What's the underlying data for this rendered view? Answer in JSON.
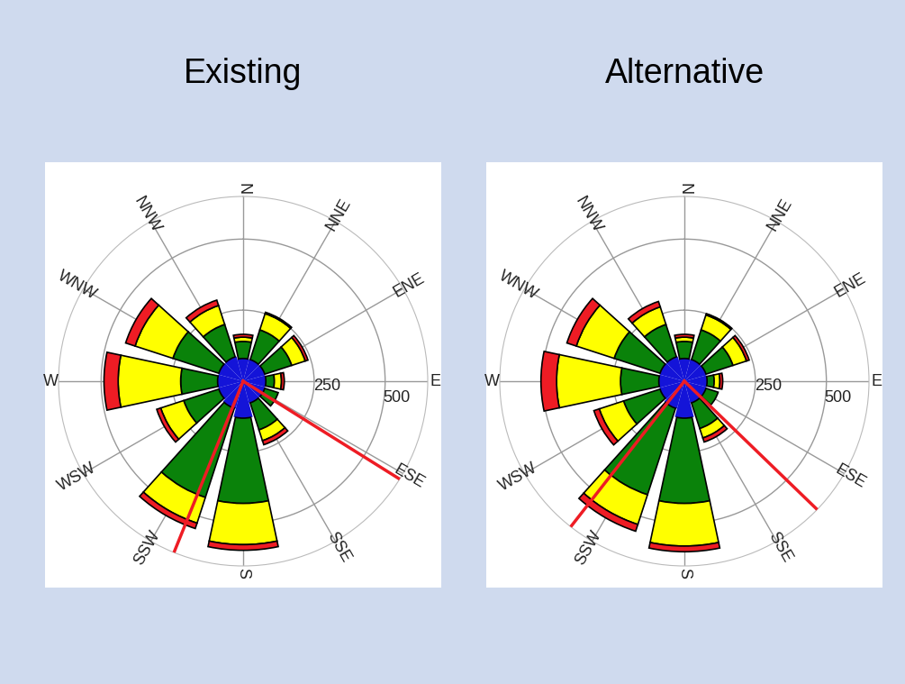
{
  "chart_data": [
    {
      "type": "windrose",
      "title": "Existing",
      "categories": [
        "N",
        "NNE",
        "ENE",
        "E",
        "ESE",
        "SSE",
        "S",
        "SSW",
        "WSW",
        "W",
        "WNW",
        "NNW"
      ],
      "ylim": [
        0,
        650
      ],
      "yticks": [
        250,
        500
      ],
      "grid": true,
      "stacked": true,
      "series": [
        {
          "color": "#1414d8",
          "values": [
            80,
            80,
            80,
            80,
            80,
            80,
            130,
            100,
            90,
            90,
            90,
            90
          ]
        },
        {
          "color": "#0a820a",
          "values": [
            60,
            110,
            100,
            30,
            50,
            100,
            300,
            330,
            130,
            130,
            170,
            120
          ]
        },
        {
          "color": "#ffff00",
          "values": [
            15,
            60,
            50,
            25,
            0,
            40,
            145,
            95,
            85,
            220,
            140,
            70
          ]
        },
        {
          "color": "#ee1c24",
          "values": [
            10,
            5,
            10,
            10,
            0,
            15,
            20,
            20,
            15,
            50,
            35,
            20
          ]
        }
      ],
      "sector_lines": {
        "color": "#ee1c24",
        "values": [
          202,
          122
        ]
      }
    },
    {
      "type": "windrose",
      "title": "Alternative",
      "categories": [
        "N",
        "NNE",
        "ENE",
        "E",
        "ESE",
        "SSE",
        "S",
        "SSW",
        "WSW",
        "W",
        "WNW",
        "NNW"
      ],
      "ylim": [
        0,
        650
      ],
      "yticks": [
        250,
        500
      ],
      "grid": true,
      "stacked": true,
      "series": [
        {
          "color": "#1414d8",
          "values": [
            80,
            80,
            80,
            80,
            80,
            80,
            130,
            100,
            90,
            90,
            90,
            90
          ]
        },
        {
          "color": "#0a820a",
          "values": [
            60,
            110,
            100,
            25,
            45,
            95,
            300,
            320,
            135,
            135,
            170,
            120
          ]
        },
        {
          "color": "#ffff00",
          "values": [
            15,
            55,
            50,
            20,
            0,
            35,
            150,
            110,
            90,
            225,
            140,
            65
          ]
        },
        {
          "color": "#ee1c24",
          "values": [
            10,
            5,
            10,
            10,
            0,
            15,
            20,
            25,
            20,
            55,
            35,
            20
          ]
        }
      ],
      "sector_lines": {
        "color": "#ee1c24",
        "values": [
          218,
          134
        ]
      }
    }
  ]
}
